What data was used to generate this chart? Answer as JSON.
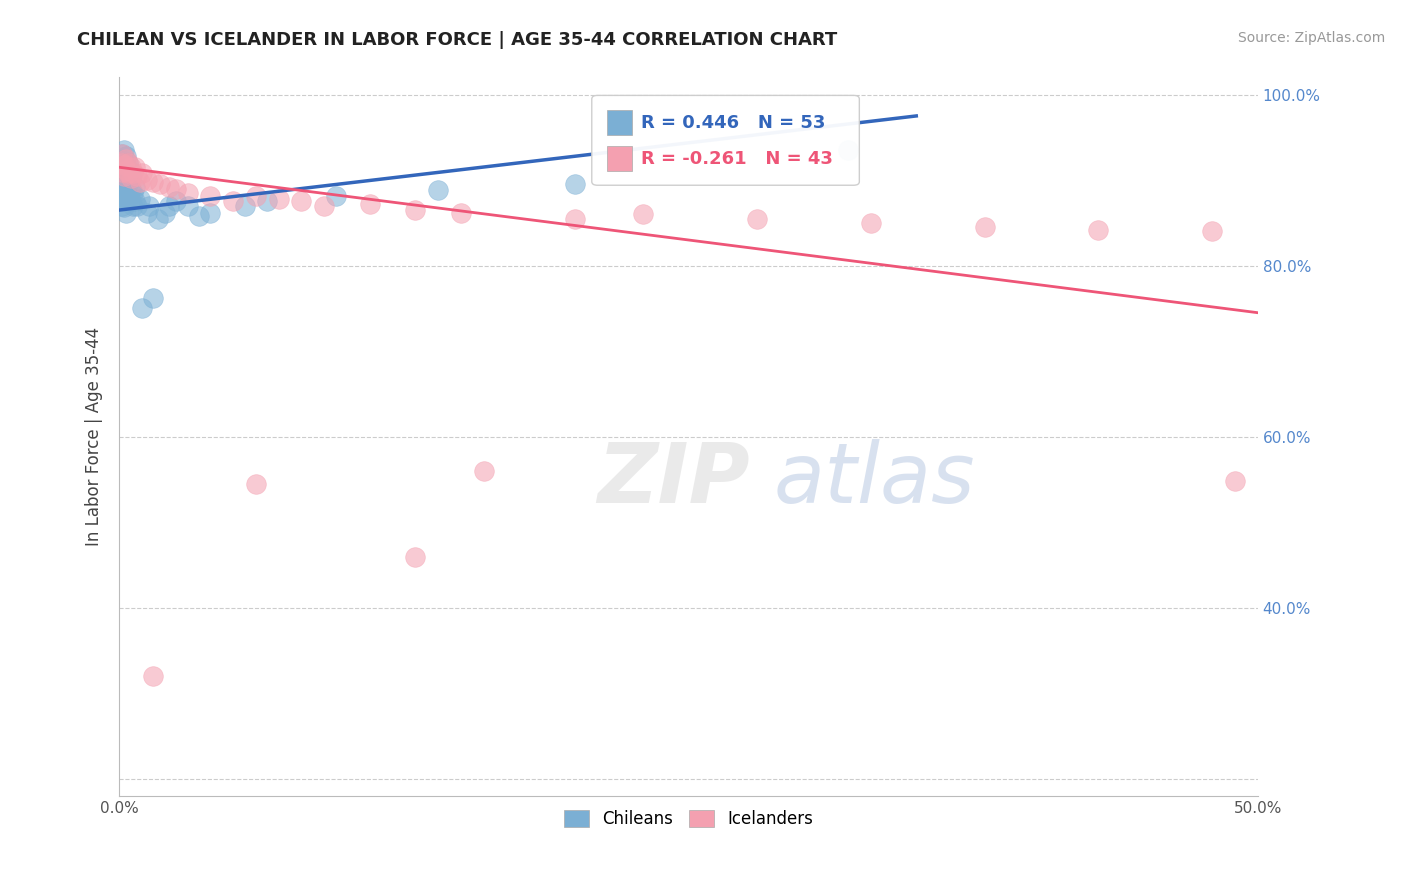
{
  "title": "CHILEAN VS ICELANDER IN LABOR FORCE | AGE 35-44 CORRELATION CHART",
  "source": "Source: ZipAtlas.com",
  "ylabel": "In Labor Force | Age 35-44",
  "xlim": [
    0.0,
    0.5
  ],
  "ylim": [
    0.18,
    1.02
  ],
  "xtick_vals": [
    0.0,
    0.05,
    0.1,
    0.15,
    0.2,
    0.25,
    0.3,
    0.35,
    0.4,
    0.45,
    0.5
  ],
  "xtick_labels": [
    "0.0%",
    "",
    "",
    "",
    "",
    "",
    "",
    "",
    "",
    "",
    "50.0%"
  ],
  "ytick_vals": [
    0.2,
    0.4,
    0.6,
    0.8,
    1.0
  ],
  "ytick_labels": [
    "",
    "40.0%",
    "60.0%",
    "80.0%",
    "100.0%"
  ],
  "legend_R_blue": "R = 0.446",
  "legend_N_blue": "N = 53",
  "legend_R_pink": "R = -0.261",
  "legend_N_pink": "N = 43",
  "blue_color": "#7BAFD4",
  "pink_color": "#F4A0B0",
  "blue_line_color": "#3366BB",
  "pink_line_color": "#EE5577",
  "blue_line_x0": 0.0,
  "blue_line_y0": 0.865,
  "blue_line_x1": 0.35,
  "blue_line_y1": 0.975,
  "pink_line_x0": 0.0,
  "pink_line_x1": 0.5,
  "pink_line_y0": 0.915,
  "pink_line_y1": 0.745,
  "chilean_x": [
    0.001,
    0.001,
    0.001,
    0.001,
    0.001,
    0.001,
    0.001,
    0.001,
    0.001,
    0.001,
    0.002,
    0.002,
    0.002,
    0.002,
    0.002,
    0.002,
    0.002,
    0.003,
    0.003,
    0.003,
    0.003,
    0.003,
    0.003,
    0.004,
    0.004,
    0.004,
    0.004,
    0.005,
    0.005,
    0.005,
    0.006,
    0.006,
    0.007,
    0.007,
    0.008,
    0.009,
    0.01,
    0.012,
    0.013,
    0.015,
    0.017,
    0.02,
    0.022,
    0.025,
    0.03,
    0.035,
    0.04,
    0.055,
    0.065,
    0.095,
    0.14,
    0.2,
    0.32
  ],
  "chilean_y": [
    0.88,
    0.89,
    0.9,
    0.91,
    0.92,
    0.93,
    0.87,
    0.885,
    0.895,
    0.915,
    0.875,
    0.888,
    0.9,
    0.912,
    0.922,
    0.868,
    0.935,
    0.878,
    0.892,
    0.905,
    0.918,
    0.928,
    0.862,
    0.882,
    0.896,
    0.908,
    0.92,
    0.875,
    0.89,
    0.905,
    0.87,
    0.885,
    0.875,
    0.892,
    0.87,
    0.878,
    0.75,
    0.862,
    0.87,
    0.762,
    0.855,
    0.862,
    0.87,
    0.875,
    0.87,
    0.858,
    0.862,
    0.87,
    0.875,
    0.882,
    0.888,
    0.895,
    0.935
  ],
  "icelander_x": [
    0.001,
    0.001,
    0.001,
    0.002,
    0.002,
    0.003,
    0.003,
    0.004,
    0.004,
    0.005,
    0.005,
    0.006,
    0.007,
    0.008,
    0.009,
    0.01,
    0.012,
    0.015,
    0.018,
    0.022,
    0.025,
    0.03,
    0.04,
    0.05,
    0.06,
    0.07,
    0.08,
    0.09,
    0.11,
    0.13,
    0.15,
    0.2,
    0.23,
    0.28,
    0.33,
    0.38,
    0.43,
    0.48,
    0.06,
    0.16,
    0.13,
    0.49,
    0.015
  ],
  "icelander_y": [
    0.91,
    0.92,
    0.93,
    0.905,
    0.918,
    0.912,
    0.925,
    0.908,
    0.92,
    0.902,
    0.915,
    0.908,
    0.915,
    0.905,
    0.898,
    0.908,
    0.9,
    0.898,
    0.895,
    0.892,
    0.89,
    0.885,
    0.882,
    0.875,
    0.882,
    0.878,
    0.875,
    0.87,
    0.872,
    0.865,
    0.862,
    0.855,
    0.86,
    0.855,
    0.85,
    0.845,
    0.842,
    0.84,
    0.545,
    0.56,
    0.46,
    0.548,
    0.32
  ]
}
